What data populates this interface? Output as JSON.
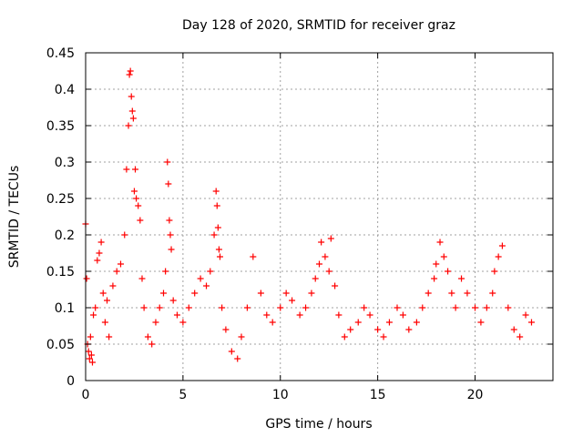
{
  "chart_data": {
    "type": "scatter",
    "title": "Day 128 of 2020, SRMTID for receiver graz",
    "xlabel": "GPS time / hours",
    "ylabel": "SRMTID / TECUs",
    "xlim": [
      0,
      24
    ],
    "ylim": [
      0,
      0.45
    ],
    "x_ticks": [
      0,
      5,
      10,
      15,
      20
    ],
    "x_tick_labels": [
      "0",
      "5",
      "10",
      "15",
      "20"
    ],
    "y_ticks": [
      0,
      0.05,
      0.1,
      0.15,
      0.2,
      0.25,
      0.3,
      0.35,
      0.4,
      0.45
    ],
    "y_tick_labels": [
      "0",
      "0.05",
      "0.1",
      "0.15",
      "0.2",
      "0.25",
      "0.3",
      "0.35",
      "0.4",
      "0.45"
    ],
    "grid": true,
    "marker": "+",
    "point_color": "#ff0000",
    "sampling": "one sample every ~0.03 h for each tracked satellite, 0–23 h",
    "series": [
      {
        "name": "SRMTID",
        "x": [
          0.0,
          0.05,
          0.1,
          0.15,
          0.2,
          0.25,
          0.3,
          0.35,
          0.4,
          0.5,
          0.6,
          0.7,
          0.8,
          0.9,
          1.0,
          1.1,
          1.2,
          1.4,
          1.6,
          1.8,
          2.0,
          2.1,
          2.2,
          2.25,
          2.3,
          2.35,
          2.4,
          2.45,
          2.5,
          2.55,
          2.6,
          2.7,
          2.8,
          2.9,
          3.0,
          3.2,
          3.4,
          3.6,
          3.8,
          4.0,
          4.1,
          4.2,
          4.25,
          4.3,
          4.35,
          4.4,
          4.5,
          4.7,
          5.0,
          5.3,
          5.6,
          5.9,
          6.2,
          6.4,
          6.6,
          6.7,
          6.75,
          6.8,
          6.85,
          6.9,
          7.0,
          7.2,
          7.5,
          7.8,
          8.0,
          8.3,
          8.6,
          9.0,
          9.3,
          9.6,
          10.0,
          10.3,
          10.6,
          11.0,
          11.3,
          11.6,
          11.8,
          12.0,
          12.1,
          12.3,
          12.5,
          12.6,
          12.8,
          13.0,
          13.3,
          13.6,
          14.0,
          14.3,
          14.6,
          15.0,
          15.3,
          15.6,
          16.0,
          16.3,
          16.6,
          17.0,
          17.3,
          17.6,
          17.9,
          18.0,
          18.2,
          18.4,
          18.6,
          18.8,
          19.0,
          19.3,
          19.6,
          20.0,
          20.3,
          20.6,
          20.9,
          21.0,
          21.2,
          21.4,
          21.7,
          22.0,
          22.3,
          22.6,
          22.9
        ],
        "y": [
          0.215,
          0.14,
          0.05,
          0.04,
          0.03,
          0.06,
          0.035,
          0.025,
          0.09,
          0.1,
          0.165,
          0.175,
          0.19,
          0.12,
          0.08,
          0.11,
          0.06,
          0.13,
          0.15,
          0.16,
          0.2,
          0.29,
          0.35,
          0.42,
          0.425,
          0.39,
          0.37,
          0.36,
          0.26,
          0.29,
          0.25,
          0.24,
          0.22,
          0.14,
          0.1,
          0.06,
          0.05,
          0.08,
          0.1,
          0.12,
          0.15,
          0.3,
          0.27,
          0.22,
          0.2,
          0.18,
          0.11,
          0.09,
          0.08,
          0.1,
          0.12,
          0.14,
          0.13,
          0.15,
          0.2,
          0.26,
          0.24,
          0.21,
          0.18,
          0.17,
          0.1,
          0.07,
          0.04,
          0.03,
          0.06,
          0.1,
          0.17,
          0.12,
          0.09,
          0.08,
          0.1,
          0.12,
          0.11,
          0.09,
          0.1,
          0.12,
          0.14,
          0.16,
          0.19,
          0.17,
          0.15,
          0.195,
          0.13,
          0.09,
          0.06,
          0.07,
          0.08,
          0.1,
          0.09,
          0.07,
          0.06,
          0.08,
          0.1,
          0.09,
          0.07,
          0.08,
          0.1,
          0.12,
          0.14,
          0.16,
          0.19,
          0.17,
          0.15,
          0.12,
          0.1,
          0.14,
          0.12,
          0.1,
          0.08,
          0.1,
          0.12,
          0.15,
          0.17,
          0.185,
          0.1,
          0.07,
          0.06,
          0.09,
          0.08
        ]
      }
    ]
  }
}
